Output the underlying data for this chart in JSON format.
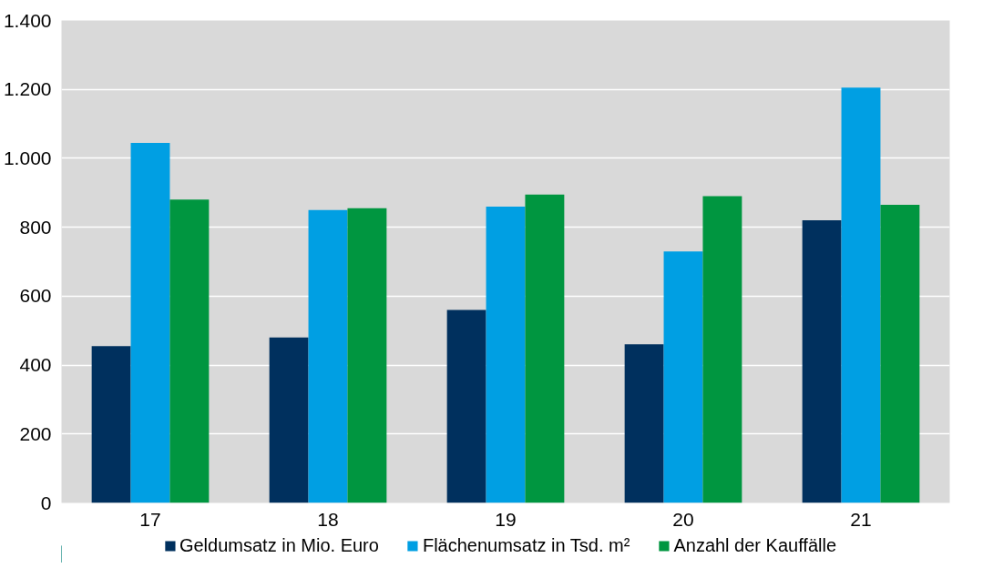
{
  "chart_data": {
    "type": "bar",
    "categories": [
      "17",
      "18",
      "19",
      "20",
      "21"
    ],
    "series": [
      {
        "name": "Geldumsatz in Mio. Euro",
        "color": "#00305e",
        "values": [
          455,
          480,
          560,
          460,
          820
        ]
      },
      {
        "name": "Flächenumsatz in Tsd. m²",
        "color": "#009fe3",
        "values": [
          1045,
          850,
          860,
          730,
          1205
        ]
      },
      {
        "name": "Anzahl der Kauffälle",
        "color": "#009640",
        "values": [
          880,
          855,
          895,
          890,
          865
        ]
      }
    ],
    "ylim": [
      0,
      1400
    ],
    "yticks": [
      0,
      200,
      400,
      600,
      800,
      {
        "value": 1000,
        "label": "1.000"
      },
      {
        "value": 1200,
        "label": "1.200"
      },
      {
        "value": 1400,
        "label": "1.400"
      }
    ],
    "grid": "y",
    "legend": "bottom"
  }
}
